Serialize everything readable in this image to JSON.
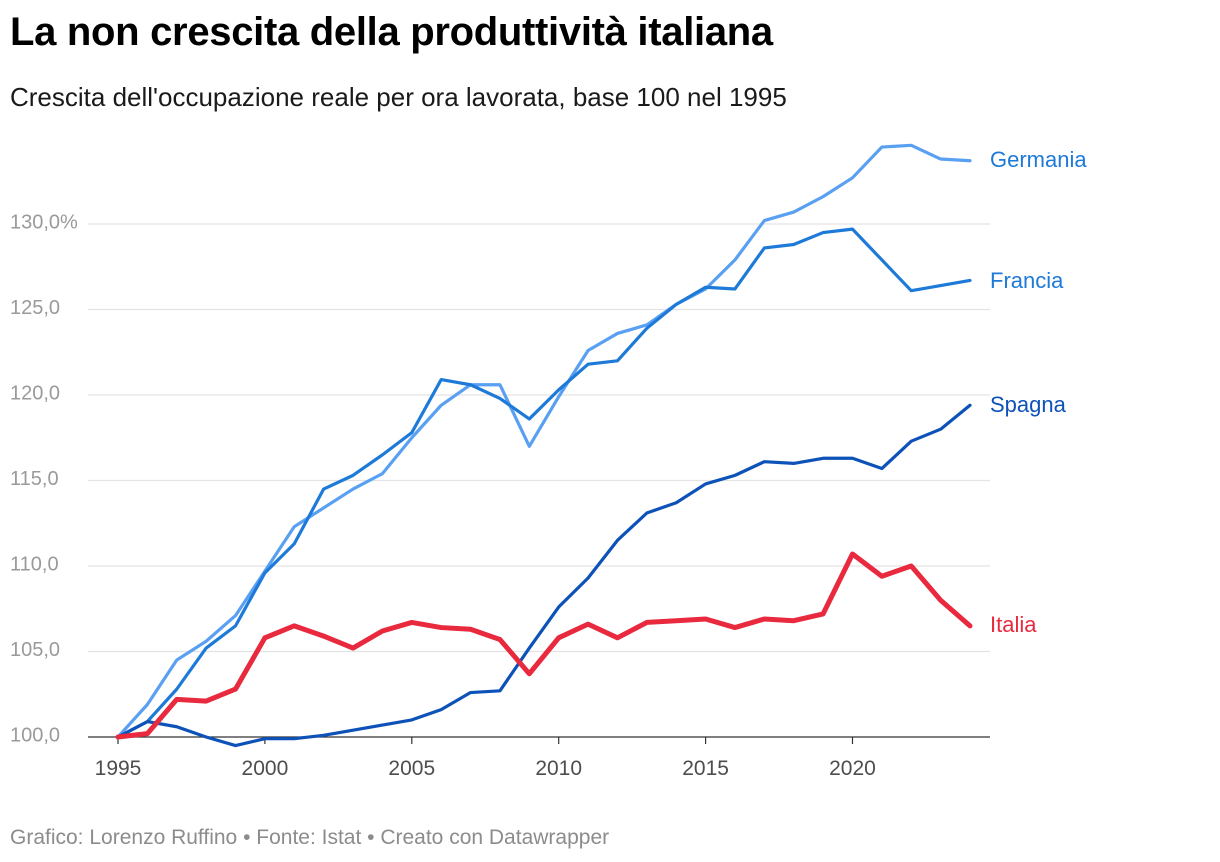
{
  "header": {
    "title": "La non crescita della produttività italiana",
    "subtitle": "Crescita dell'occupazione reale per ora lavorata, base 100 nel 1995"
  },
  "footer": {
    "credit": "Grafico: Lorenzo Ruffino • Fonte: Istat • Creato con Datawrapper"
  },
  "chart_data": {
    "type": "line",
    "title": "La non crescita della produttività italiana",
    "subtitle": "Crescita dell'occupazione reale per ora lavorata, base 100 nel 1995",
    "xlabel": "",
    "ylabel": "",
    "x": [
      1995,
      1996,
      1997,
      1998,
      1999,
      2000,
      2001,
      2002,
      2003,
      2004,
      2005,
      2006,
      2007,
      2008,
      2009,
      2010,
      2011,
      2012,
      2013,
      2014,
      2015,
      2016,
      2017,
      2018,
      2019,
      2020,
      2021,
      2022,
      2023,
      2024
    ],
    "xlim": [
      1995,
      2024
    ],
    "ylim": [
      100,
      135
    ],
    "x_ticks": [
      1995,
      2000,
      2005,
      2010,
      2015,
      2020
    ],
    "x_tick_labels": [
      "1995",
      "2000",
      "2005",
      "2010",
      "2015",
      "2020"
    ],
    "y_ticks": [
      100,
      105,
      110,
      115,
      120,
      125,
      130
    ],
    "y_tick_labels": [
      "100,0",
      "105,0",
      "110,0",
      "115,0",
      "120,0",
      "125,0",
      "130,0%"
    ],
    "grid": true,
    "legend": "direct labels at line ends (right)",
    "series": [
      {
        "name": "Germania",
        "color": "#5aa0f2",
        "values": [
          100,
          101.9,
          104.5,
          105.6,
          107.1,
          109.7,
          112.3,
          113.4,
          114.5,
          115.4,
          117.5,
          119.4,
          120.6,
          120.6,
          117.0,
          119.9,
          122.6,
          123.6,
          124.1,
          125.3,
          126.2,
          127.9,
          130.2,
          130.7,
          131.6,
          132.7,
          134.5,
          134.6,
          133.8,
          133.7
        ]
      },
      {
        "name": "Francia",
        "color": "#1e7ad8",
        "values": [
          100,
          100.9,
          102.8,
          105.2,
          106.5,
          109.6,
          111.3,
          114.5,
          115.3,
          116.5,
          117.8,
          120.9,
          120.6,
          119.8,
          118.6,
          120.3,
          121.8,
          122.0,
          123.9,
          125.3,
          126.3,
          126.2,
          128.6,
          128.8,
          129.5,
          129.7,
          127.9,
          126.1,
          126.4,
          126.7
        ]
      },
      {
        "name": "Spagna",
        "color": "#0d52b8",
        "values": [
          100,
          100.9,
          100.6,
          100.0,
          99.5,
          99.9,
          99.9,
          100.1,
          100.4,
          100.7,
          101.0,
          101.6,
          102.6,
          102.7,
          105.2,
          107.6,
          109.3,
          111.5,
          113.1,
          113.7,
          114.8,
          115.3,
          116.1,
          116.0,
          116.3,
          116.3,
          115.7,
          117.3,
          118.0,
          119.4
        ]
      },
      {
        "name": "Italia",
        "color": "#e8293e",
        "values": [
          100,
          100.2,
          102.2,
          102.1,
          102.8,
          105.8,
          106.5,
          105.9,
          105.2,
          106.2,
          106.7,
          106.4,
          106.3,
          105.7,
          103.7,
          105.8,
          106.6,
          105.8,
          106.7,
          106.8,
          106.9,
          106.4,
          106.9,
          106.8,
          107.2,
          110.7,
          109.4,
          110.0,
          108.0,
          106.5
        ]
      }
    ]
  }
}
